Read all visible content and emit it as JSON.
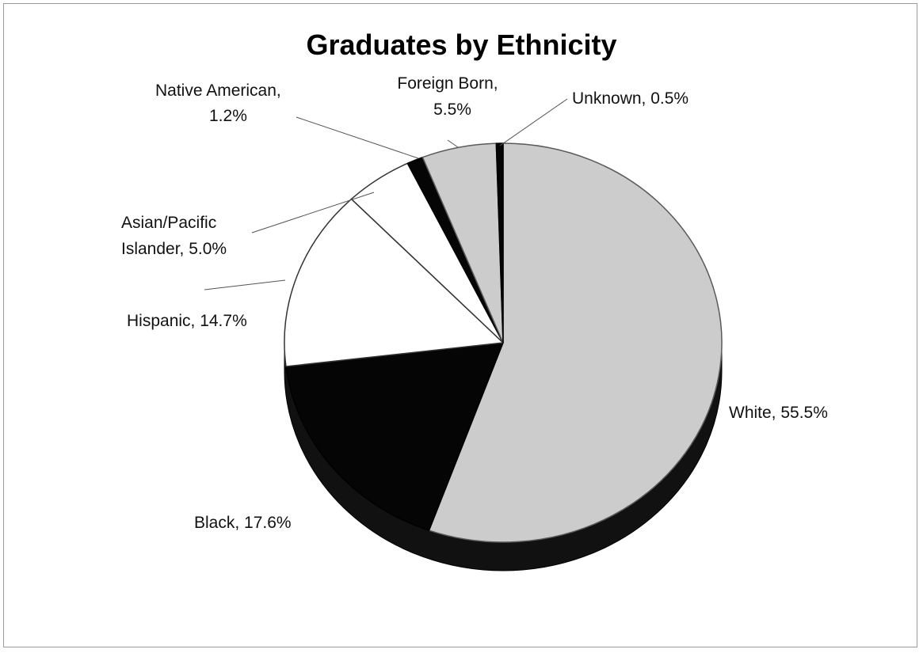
{
  "chart_data": {
    "type": "pie",
    "title": "Graduates by Ethnicity",
    "slices": [
      {
        "name": "White",
        "value": 55.5,
        "label_lines": [
          "White, 55.5%"
        ],
        "color": "#cccccc",
        "edge": "#5a5a5a"
      },
      {
        "name": "Black",
        "value": 17.6,
        "label_lines": [
          "Black, 17.6%"
        ],
        "color": "#050505",
        "edge": "#000000"
      },
      {
        "name": "Hispanic",
        "value": 14.7,
        "label_lines": [
          "Hispanic, 14.7%"
        ],
        "color": "#ffffff",
        "edge": "#333333"
      },
      {
        "name": "Asian/Pacific Islander",
        "value": 5.0,
        "label_lines": [
          "Asian/Pacific",
          "Islander, 5.0%"
        ],
        "color": "#ffffff",
        "edge": "#333333"
      },
      {
        "name": "Native American",
        "value": 1.2,
        "label_lines": [
          "Native American,",
          "1.2%"
        ],
        "color": "#050505",
        "edge": "#000000"
      },
      {
        "name": "Foreign Born",
        "value": 5.5,
        "label_lines": [
          "Foreign Born,",
          "5.5%"
        ],
        "color": "#cccccc",
        "edge": "#5a5a5a"
      },
      {
        "name": "Unknown",
        "value": 0.5,
        "label_lines": [
          "Unknown, 0.5%"
        ],
        "color": "#050505",
        "edge": "#000000"
      }
    ],
    "legend": "none",
    "label_style": "leader-lines"
  }
}
